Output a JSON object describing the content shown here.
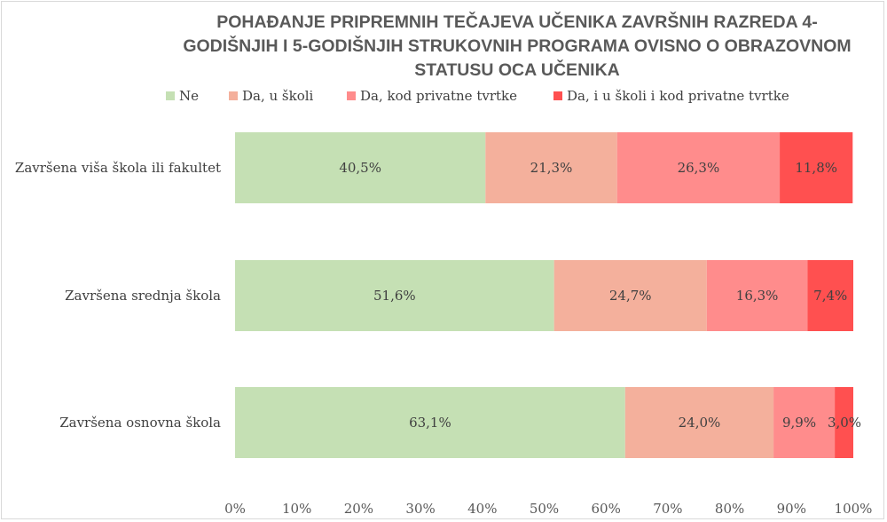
{
  "chart_data": {
    "type": "bar",
    "orientation": "horizontal",
    "stacked": "percent",
    "title": "POHAĐANJE PRIPREMNIH TEČAJEVA UČENIKA ZAVRŠNIH RAZREDA 4-GODIŠNJIH I 5-GODIŠNJIH STRUKOVNIH PROGRAMA OVISNO O OBRAZOVNOM STATUSU OCA UČENIKA",
    "title_lines": [
      "POHAĐANJE PRIPREMNIH TEČAJEVA UČENIKA ZAVRŠNIH RAZREDA 4-",
      "GODIŠNJIH I 5-GODIŠNJIH STRUKOVNIH PROGRAMA OVISNO O OBRAZOVNOM",
      "STATUSU OCA UČENIKA"
    ],
    "categories": [
      "Završena viša škola ili fakultet",
      "Završena srednja škola",
      "Završena osnovna škola"
    ],
    "series": [
      {
        "name": "Ne",
        "color": "#c5e0b4",
        "values": [
          40.5,
          51.6,
          63.1
        ],
        "labels": [
          "40,5%",
          "51,6%",
          "63,1%"
        ]
      },
      {
        "name": "Da, u školi",
        "color": "#f4b09c",
        "values": [
          21.3,
          24.7,
          24.0
        ],
        "labels": [
          "21,3%",
          "24,7%",
          "24,0%"
        ]
      },
      {
        "name": "Da, kod privatne tvrtke",
        "color": "#ff8c8c",
        "values": [
          26.3,
          16.3,
          9.9
        ],
        "labels": [
          "26,3%",
          "16,3%",
          "9,9%"
        ]
      },
      {
        "name": "Da, i u školi i kod privatne tvrtke",
        "color": "#ff5050",
        "values": [
          11.8,
          7.4,
          3.0
        ],
        "labels": [
          "11,8%",
          "7,4%",
          "3,0%"
        ]
      }
    ],
    "xlim": [
      0,
      100
    ],
    "x_ticks": [
      "0%",
      "10%",
      "20%",
      "30%",
      "40%",
      "50%",
      "60%",
      "70%",
      "80%",
      "90%",
      "100%"
    ],
    "legend_position": "top",
    "grid": false
  }
}
